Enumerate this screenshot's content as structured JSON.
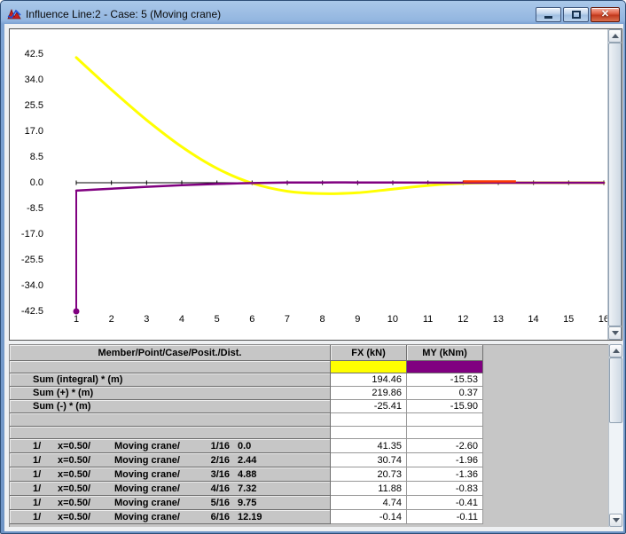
{
  "window": {
    "title": "Influence Line:2 - Case: 5 (Moving crane)",
    "close_glyph": "✕"
  },
  "chart_data": {
    "type": "line",
    "title": "",
    "x_tick_labels": [
      "1",
      "2",
      "3",
      "4",
      "5",
      "6",
      "7",
      "8",
      "9",
      "10",
      "11",
      "12",
      "13",
      "14",
      "15",
      "16"
    ],
    "y_tick_labels": [
      "42.5",
      "34.0",
      "25.5",
      "17.0",
      "8.5",
      "0.0",
      "-8.5",
      "-17.0",
      "-25.5",
      "-34.0",
      "-42.5"
    ],
    "xlim": [
      1,
      16
    ],
    "ylim": [
      -42.5,
      42.5
    ],
    "grid": false,
    "legend": "none",
    "axis_color": "#000000",
    "series": [
      {
        "name": "FX (kN)",
        "color": "#ffff00",
        "width": 3,
        "x": [
          1,
          2,
          3,
          4,
          5,
          6,
          7,
          8,
          9,
          10,
          11,
          12,
          13,
          14,
          15,
          16
        ],
        "values": [
          41.35,
          30.74,
          20.73,
          11.88,
          4.74,
          -0.14,
          -2.8,
          -3.6,
          -3.3,
          -2.1,
          -0.9,
          -0.2,
          0,
          0,
          0,
          0
        ]
      },
      {
        "name": "MY (kNm)",
        "color": "#800080",
        "width": 2.5,
        "x": [
          1,
          2,
          3,
          4,
          5,
          6,
          7,
          8,
          9,
          10,
          11,
          12,
          13,
          14,
          15,
          16
        ],
        "values": [
          -2.6,
          -1.96,
          -1.36,
          -0.83,
          -0.41,
          -0.11,
          0.05,
          0.1,
          0.08,
          0.05,
          0.02,
          0,
          0,
          0,
          0,
          0
        ]
      }
    ],
    "position_marker": {
      "x": 1,
      "from": -2.6,
      "y": -42.5,
      "color": "#800080"
    },
    "red_segment": {
      "x1": 12.0,
      "x2": 13.5,
      "y": 0,
      "color": "#ff3c00"
    }
  },
  "table": {
    "headers": [
      "Member/Point/Case/Posit./Dist.",
      "FX (kN)",
      "MY (kNm)"
    ],
    "swatches": [
      "#ffff00",
      "#800080"
    ],
    "summary_rows": [
      {
        "label": "Sum (integral) * (m)",
        "fx": "194.46",
        "my": "-15.53"
      },
      {
        "label": "Sum (+) * (m)",
        "fx": "219.86",
        "my": "0.37"
      },
      {
        "label": "Sum (-) * (m)",
        "fx": "-25.41",
        "my": "-15.90"
      }
    ],
    "data_rows": [
      {
        "member": "1/",
        "position": "x=0.50/",
        "case": "Moving crane/",
        "point": "1/16",
        "dist": "0.0",
        "fx": "41.35",
        "my": "-2.60"
      },
      {
        "member": "1/",
        "position": "x=0.50/",
        "case": "Moving crane/",
        "point": "2/16",
        "dist": "2.44",
        "fx": "30.74",
        "my": "-1.96"
      },
      {
        "member": "1/",
        "position": "x=0.50/",
        "case": "Moving crane/",
        "point": "3/16",
        "dist": "4.88",
        "fx": "20.73",
        "my": "-1.36"
      },
      {
        "member": "1/",
        "position": "x=0.50/",
        "case": "Moving crane/",
        "point": "4/16",
        "dist": "7.32",
        "fx": "11.88",
        "my": "-0.83"
      },
      {
        "member": "1/",
        "position": "x=0.50/",
        "case": "Moving crane/",
        "point": "5/16",
        "dist": "9.75",
        "fx": "4.74",
        "my": "-0.41"
      },
      {
        "member": "1/",
        "position": "x=0.50/",
        "case": "Moving crane/",
        "point": "6/16",
        "dist": "12.19",
        "fx": "-0.14",
        "my": "-0.11"
      }
    ]
  }
}
